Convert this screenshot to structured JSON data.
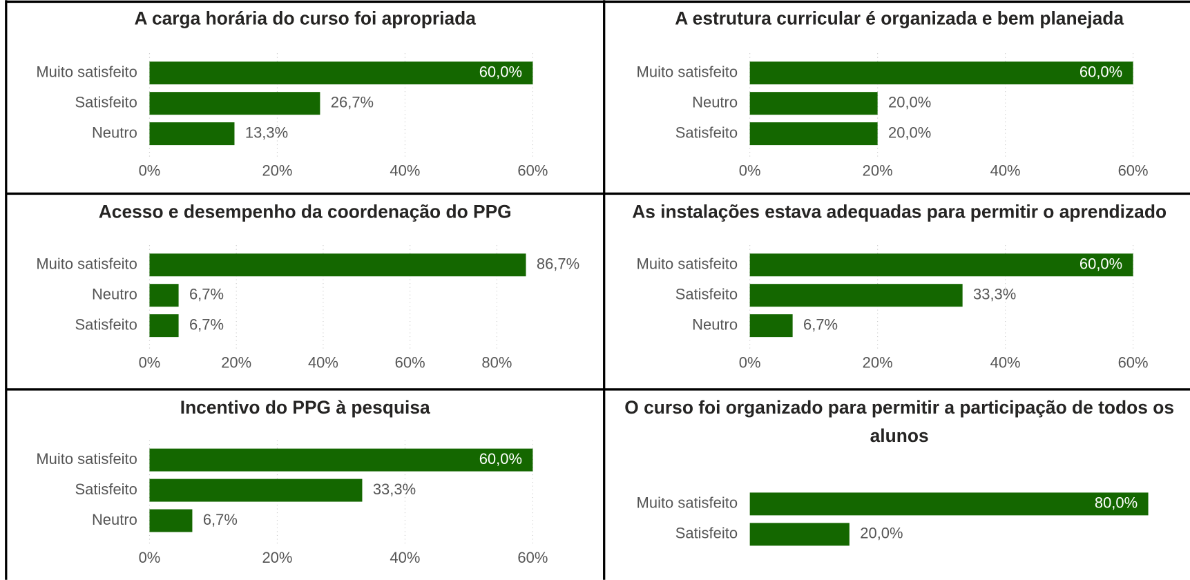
{
  "chart_data": [
    {
      "type": "bar",
      "orientation": "horizontal",
      "title": "A carga horária do curso foi apropriada",
      "categories": [
        "Muito satisfeito",
        "Satisfeito",
        "Neutro"
      ],
      "values": [
        60,
        26.7,
        13.3
      ],
      "value_labels": [
        "60,0%",
        "26,7%",
        "13,3%"
      ],
      "color": "#146700",
      "xlim": [
        0,
        60
      ],
      "xticks": [
        {
          "value": 0,
          "label": "0%"
        },
        {
          "value": 20,
          "label": "20%"
        },
        {
          "value": 40,
          "label": "40%"
        },
        {
          "value": 60,
          "label": "60%"
        }
      ],
      "grid": true
    },
    {
      "type": "bar",
      "orientation": "horizontal",
      "title": "A estrutura curricular é organizada e bem planejada",
      "categories": [
        "Muito satisfeito",
        "Neutro",
        "Satisfeito"
      ],
      "values": [
        60,
        20,
        20
      ],
      "value_labels": [
        "60,0%",
        "20,0%",
        "20,0%"
      ],
      "color": "#146700",
      "xlim": [
        0,
        60
      ],
      "xticks": [
        {
          "value": 0,
          "label": "0%"
        },
        {
          "value": 20,
          "label": "20%"
        },
        {
          "value": 40,
          "label": "40%"
        },
        {
          "value": 60,
          "label": "60%"
        }
      ],
      "grid": true
    },
    {
      "type": "bar",
      "orientation": "horizontal",
      "title": "Acesso e desempenho da coordenação do PPG",
      "categories": [
        "Muito satisfeito",
        "Neutro",
        "Satisfeito"
      ],
      "values": [
        86.7,
        6.7,
        6.7
      ],
      "value_labels": [
        "86,7%",
        "6,7%",
        "6,7%"
      ],
      "color": "#146700",
      "xlim": [
        0,
        86.7
      ],
      "xticks": [
        {
          "value": 0,
          "label": "0%"
        },
        {
          "value": 20,
          "label": "20%"
        },
        {
          "value": 40,
          "label": "40%"
        },
        {
          "value": 60,
          "label": "60%"
        },
        {
          "value": 80,
          "label": "80%"
        }
      ],
      "grid": true
    },
    {
      "type": "bar",
      "orientation": "horizontal",
      "title": "As instalações estava adequadas para permitir o aprendizado",
      "categories": [
        "Muito satisfeito",
        "Satisfeito",
        "Neutro"
      ],
      "values": [
        60,
        33.3,
        6.7
      ],
      "value_labels": [
        "60,0%",
        "33,3%",
        "6,7%"
      ],
      "color": "#146700",
      "xlim": [
        0,
        60
      ],
      "xticks": [
        {
          "value": 0,
          "label": "0%"
        },
        {
          "value": 20,
          "label": "20%"
        },
        {
          "value": 40,
          "label": "40%"
        },
        {
          "value": 60,
          "label": "60%"
        }
      ],
      "grid": true
    },
    {
      "type": "bar",
      "orientation": "horizontal",
      "title": "Incentivo do PPG à pesquisa",
      "categories": [
        "Muito satisfeito",
        "Satisfeito",
        "Neutro"
      ],
      "values": [
        60,
        33.3,
        6.7
      ],
      "value_labels": [
        "60,0%",
        "33,3%",
        "6,7%"
      ],
      "color": "#146700",
      "xlim": [
        0,
        60
      ],
      "xticks": [
        {
          "value": 0,
          "label": "0%"
        },
        {
          "value": 20,
          "label": "20%"
        },
        {
          "value": 40,
          "label": "40%"
        },
        {
          "value": 60,
          "label": "60%"
        }
      ],
      "grid": true
    },
    {
      "type": "bar",
      "orientation": "horizontal",
      "title": "O curso foi organizado para permitir a participação de todos os alunos",
      "categories": [
        "Muito satisfeito",
        "Satisfeito"
      ],
      "values": [
        80,
        20
      ],
      "value_labels": [
        "80,0%",
        "20,0%"
      ],
      "color": "#146700",
      "xlim": [
        0,
        80
      ],
      "grid": false
    }
  ]
}
